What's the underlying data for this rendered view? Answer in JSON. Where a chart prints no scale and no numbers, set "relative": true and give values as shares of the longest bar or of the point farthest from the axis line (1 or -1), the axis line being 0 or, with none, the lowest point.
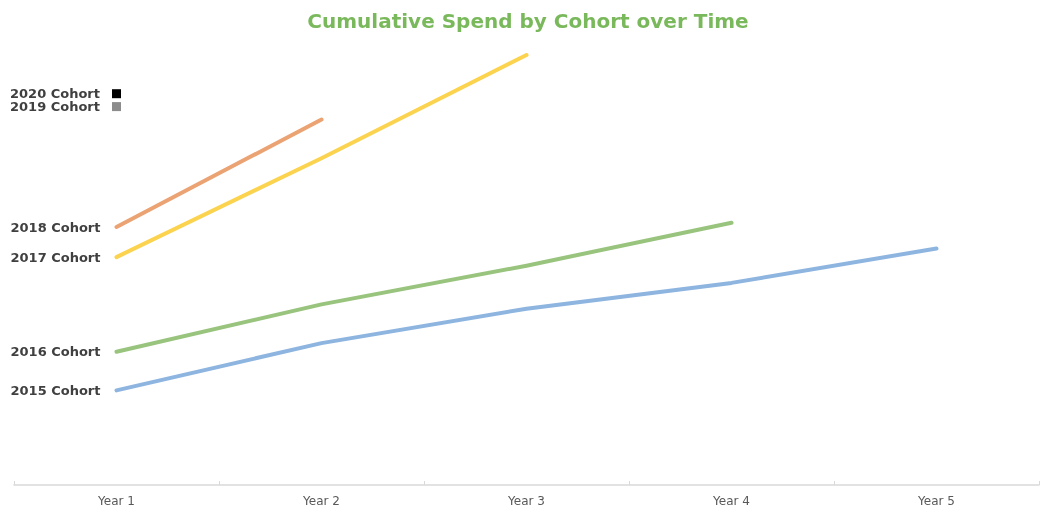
{
  "chart_data": {
    "type": "line",
    "title": "Cumulative Spend by Cohort over Time",
    "relative": true,
    "marker": "none",
    "line_style": "solid",
    "grid": false,
    "categories": [
      "Year 1",
      "Year 2",
      "Year 3",
      "Year 4",
      "Year 5"
    ],
    "series": [
      {
        "name": "2015 Cohort",
        "color": "#8db5e0",
        "values": [
          0.22,
          0.33,
          0.41,
          0.47,
          0.55
        ]
      },
      {
        "name": "2016 Cohort",
        "color": "#99c47e",
        "values": [
          0.31,
          0.42,
          0.51,
          0.61,
          null
        ]
      },
      {
        "name": "2017 Cohort",
        "color": "#fbd34f",
        "values": [
          0.53,
          0.76,
          1,
          null,
          null
        ]
      },
      {
        "name": "2018 Cohort",
        "color": "#eba373",
        "values": [
          0.6,
          0.85,
          null,
          null,
          null
        ]
      },
      {
        "name": "2019 Cohort",
        "color": "#8c8c8c",
        "marker": "square",
        "values": [
          0.88,
          null,
          null,
          null,
          null
        ]
      },
      {
        "name": "2020 Cohort",
        "color": "#000000",
        "marker": "square",
        "values": [
          0.91,
          null,
          null,
          null,
          null
        ]
      }
    ]
  }
}
